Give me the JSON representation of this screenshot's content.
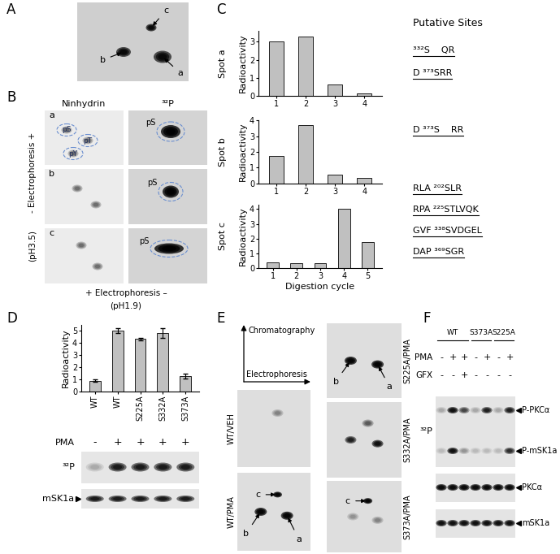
{
  "panel_labels": [
    "A",
    "B",
    "C",
    "D",
    "E",
    "F"
  ],
  "panel_a": {
    "spots": [
      "a",
      "b",
      "c"
    ]
  },
  "panel_b": {
    "column_titles": [
      "Ninhydrin",
      "³²P"
    ],
    "rows": [
      {
        "label": "a",
        "ninhydrin": [
          "pS",
          "pT",
          "pY"
        ],
        "p32": [
          "pS"
        ]
      },
      {
        "label": "b",
        "ninhydrin": [],
        "p32": [
          "pS"
        ]
      },
      {
        "label": "c",
        "ninhydrin": [],
        "p32": [
          "pS"
        ]
      }
    ],
    "vertical_axis": [
      "- Electrophoresis +",
      "(pH3.5)"
    ],
    "horizontal_axis": [
      "+ Electrophoresis –",
      "(pH1.9)"
    ]
  },
  "chart_data": [
    {
      "type": "bar",
      "title": "Spot a",
      "ylabel": "Radioactivity",
      "categories": [
        "1",
        "2",
        "3",
        "4"
      ],
      "values": [
        3.0,
        3.3,
        0.65,
        0.15
      ],
      "ylim": [
        0,
        3.6
      ],
      "yticks": [
        0,
        1,
        2,
        3
      ],
      "color": "#c0c0c0"
    },
    {
      "type": "bar",
      "title": "Spot b",
      "ylabel": "Radioactivity",
      "categories": [
        "1",
        "2",
        "3",
        "4"
      ],
      "values": [
        1.75,
        3.7,
        0.55,
        0.35
      ],
      "ylim": [
        0,
        4
      ],
      "yticks": [
        0,
        1,
        2,
        3,
        4
      ],
      "color": "#c0c0c0"
    },
    {
      "type": "bar",
      "title": "Spot c",
      "ylabel": "Radioactivity",
      "xlabel": "Digestion cycle",
      "categories": [
        "1",
        "2",
        "3",
        "4",
        "5"
      ],
      "values": [
        0.4,
        0.35,
        0.35,
        4.0,
        1.75
      ],
      "ylim": [
        0,
        4.3
      ],
      "yticks": [
        0,
        1,
        2,
        3,
        4
      ],
      "color": "#c0c0c0"
    },
    {
      "type": "bar",
      "ylabel": "Radioactivity",
      "categories": [
        "WT",
        "WT",
        "S225A",
        "S332A",
        "S373A"
      ],
      "values": [
        0.9,
        5.0,
        4.35,
        4.8,
        1.3
      ],
      "errors": [
        0.1,
        0.2,
        0.1,
        0.4,
        0.2
      ],
      "ylim": [
        0,
        5.5
      ],
      "yticks": [
        0,
        1,
        2,
        3,
        4,
        5
      ],
      "color": "#c0c0c0"
    }
  ],
  "panel_c_sites": {
    "title": "Putative Sites",
    "groups": [
      [
        "³³²S    QR",
        "D ³⁷³SRR"
      ],
      [
        "D ³⁷³S    RR"
      ],
      [
        "RLA ²⁰²SLR",
        "RPA ²²⁵STLVQK",
        "GVF ³³⁸SVDGEL",
        "DAP ³⁶⁹SGR"
      ]
    ]
  },
  "panel_d_blot": {
    "rows": [
      {
        "label": "PMA",
        "values": [
          "-",
          "+",
          "+",
          "+",
          "+"
        ]
      }
    ],
    "bands": [
      "³²P",
      "mSK1a"
    ]
  },
  "panel_e": {
    "axes": [
      "Chromatography",
      "Electrophoresis"
    ],
    "maps": [
      {
        "label": "WT/VEH",
        "spots": []
      },
      {
        "label": "WT/PMA",
        "spots": [
          "c",
          "b",
          "a"
        ]
      },
      {
        "label": "S225A/PMA",
        "spots": [
          "b",
          "a"
        ]
      },
      {
        "label": "S332A/PMA",
        "spots": []
      },
      {
        "label": "S373A/PMA",
        "spots": [
          "c"
        ]
      }
    ]
  },
  "panel_f": {
    "groups": [
      {
        "label": "WT",
        "lanes": 3
      },
      {
        "label": "S373A",
        "lanes": 2
      },
      {
        "label": "S225A",
        "lanes": 2
      }
    ],
    "rows": [
      {
        "label": "PMA",
        "values": [
          "-",
          "+",
          "+",
          "-",
          "+",
          "-",
          "+"
        ]
      },
      {
        "label": "GFX",
        "values": [
          "-",
          "-",
          "+",
          "-",
          "-",
          "-",
          "-"
        ]
      }
    ],
    "blots": [
      {
        "label": "³²P",
        "bands": [
          "P-PKCα",
          "P-mSK1a"
        ]
      },
      {
        "label": "",
        "bands": [
          "PKCα"
        ]
      },
      {
        "label": "",
        "bands": [
          "mSK1a"
        ]
      }
    ]
  }
}
